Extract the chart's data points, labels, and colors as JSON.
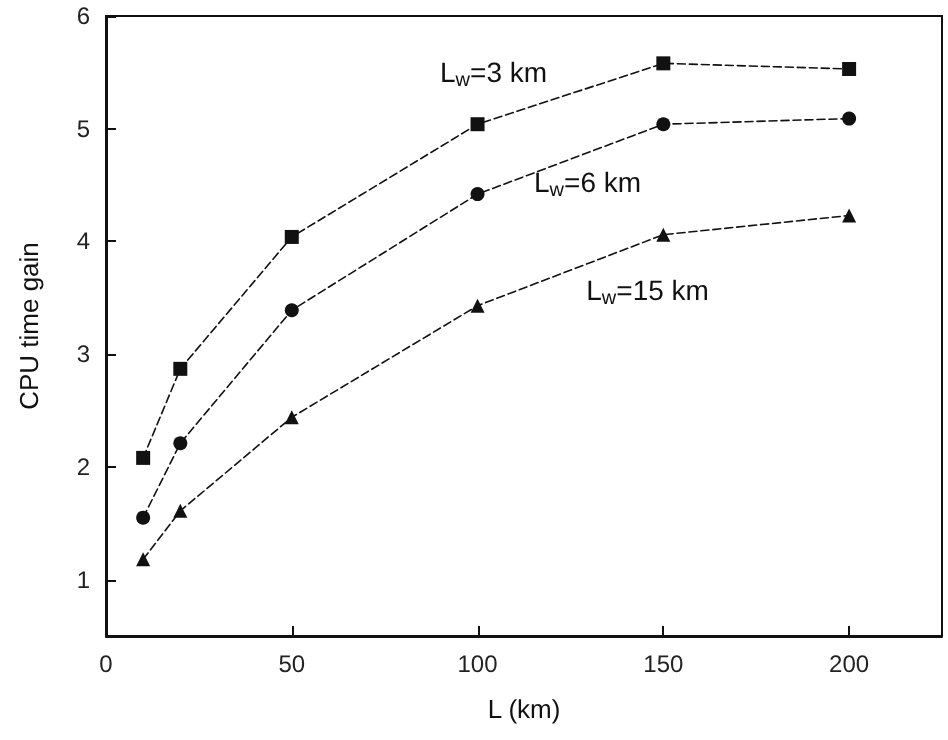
{
  "chart_data": {
    "type": "line",
    "xlabel": "L (km)",
    "ylabel": "CPU time gain",
    "x": [
      10,
      20,
      50,
      100,
      150,
      200
    ],
    "series": [
      {
        "name": "L$_{w}$=3 km",
        "color": "#111111",
        "marker": "square",
        "values": [
          2.08,
          2.87,
          4.04,
          5.04,
          5.58,
          5.53
        ]
      },
      {
        "name": "L$_{w}$=6 km",
        "color": "#111111",
        "marker": "circle",
        "values": [
          1.55,
          2.21,
          3.39,
          4.42,
          5.04,
          5.09
        ]
      },
      {
        "name": "L$_{w}$=15 km",
        "color": "#111111",
        "marker": "triangle",
        "values": [
          1.18,
          1.61,
          2.44,
          3.43,
          4.06,
          4.23
        ]
      }
    ],
    "xlim": [
      0,
      225
    ],
    "xticks": [
      0,
      50,
      100,
      150,
      200
    ],
    "ylim": [
      0.5,
      6
    ],
    "yticks": [
      1,
      2,
      3,
      4,
      5,
      6
    ],
    "line_style": "dashed",
    "grid": false
  }
}
